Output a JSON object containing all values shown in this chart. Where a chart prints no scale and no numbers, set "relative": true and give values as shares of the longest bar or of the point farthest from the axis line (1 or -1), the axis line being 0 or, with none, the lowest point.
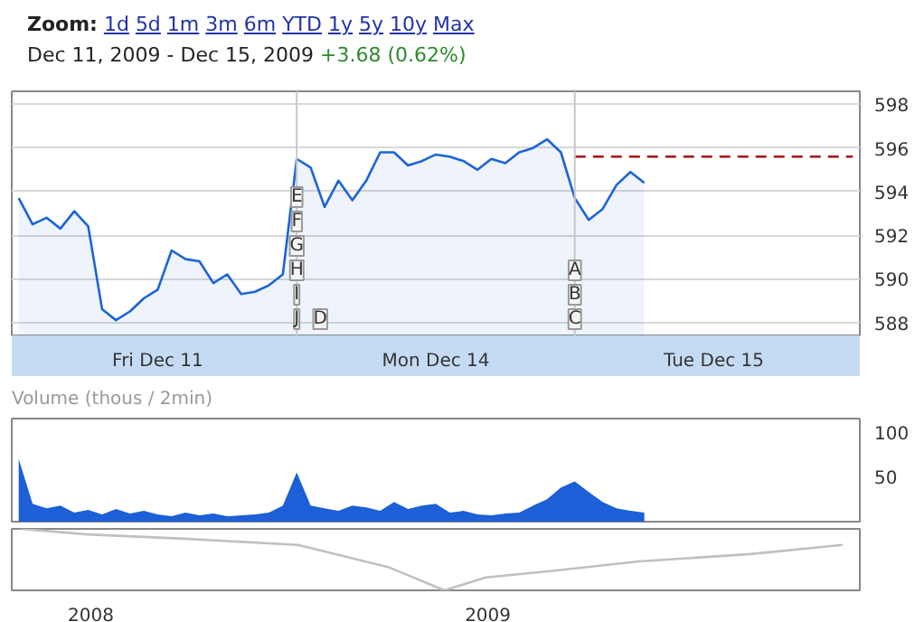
{
  "chart_data": [
    {
      "type": "area",
      "annotations": [
        "Zoom: 1d 5d 1m 3m 6m YTD 1y 5y 10y Max",
        "Dec 11, 2009",
        "-",
        "Dec 15, 2009",
        "+3.68 (0.62%)",
        "E",
        "F",
        "G",
        "H",
        "I",
        "J",
        "D",
        "A",
        "B",
        "C"
      ],
      "categories": [
        null,
        null,
        null,
        null,
        null,
        null,
        null,
        null,
        null,
        null,
        "Fri Dec 11",
        null,
        null,
        null,
        null,
        null,
        null,
        null,
        null,
        null,
        null,
        null,
        null,
        null,
        null,
        null,
        null,
        null,
        null,
        null,
        "Mon Dec 14",
        null,
        null,
        null,
        null,
        null,
        null,
        null,
        null,
        null,
        null,
        null,
        null,
        null,
        null,
        null,
        null,
        null,
        null,
        null,
        "Tue Dec 15",
        null,
        null,
        null,
        null,
        null,
        null,
        null,
        null,
        null,
        null
      ],
      "ylim": [
        587.4,
        598.6
      ],
      "yticks": [
        588,
        590,
        592,
        594,
        596,
        598
      ],
      "grid": "y",
      "series": [
        {
          "color": "#1c64d8",
          "values": [
            593.7,
            592.5,
            592.8,
            592.3,
            593.1,
            592.4,
            588.6,
            588.1,
            588.5,
            589.1,
            589.5,
            591.3,
            590.9,
            590.8,
            589.8,
            590.2,
            589.3,
            589.4,
            589.7,
            590.2,
            595.5,
            595.1,
            593.3,
            594.5,
            593.6,
            594.5,
            595.8,
            595.8,
            595.2,
            595.4,
            595.7,
            595.6,
            595.4,
            595.0,
            595.5,
            595.3,
            595.8,
            596.0,
            596.4,
            595.8,
            593.7,
            592.7,
            593.2,
            594.3,
            594.9,
            594.4,
            null,
            null,
            null,
            null,
            null,
            null,
            null,
            null,
            null,
            null,
            null,
            null,
            null,
            null,
            null
          ]
        },
        {
          "type": "line",
          "color": "#aa1111",
          "line_style": "dashed",
          "values": [
            null,
            null,
            null,
            null,
            null,
            null,
            null,
            null,
            null,
            null,
            null,
            null,
            null,
            null,
            null,
            null,
            null,
            null,
            null,
            null,
            null,
            null,
            null,
            null,
            null,
            null,
            null,
            null,
            null,
            null,
            null,
            null,
            null,
            null,
            null,
            null,
            null,
            null,
            null,
            null,
            595.6,
            595.6,
            595.6,
            595.6,
            595.6,
            595.6,
            595.6,
            595.6,
            595.6,
            595.6,
            595.6,
            595.6,
            595.6,
            595.6,
            595.6,
            595.6,
            595.6,
            595.6,
            595.6,
            595.6,
            595.6
          ]
        }
      ]
    },
    {
      "type": "area",
      "title": "Volume (thous / 2min)",
      "ylim": [
        0,
        115
      ],
      "yticks": [
        50,
        100
      ],
      "tick_labels": "y",
      "categories": [
        null,
        null,
        null,
        null,
        null,
        null,
        null,
        null,
        null,
        null,
        null,
        null,
        null,
        null,
        null,
        null,
        null,
        null,
        null,
        null,
        null,
        null,
        null,
        null,
        null,
        null,
        null,
        null,
        null,
        null,
        null,
        null,
        null,
        null,
        null,
        null,
        null,
        null,
        null,
        null,
        null,
        null,
        null,
        null,
        null,
        null,
        null,
        null,
        null,
        null,
        null,
        null,
        null,
        null,
        null,
        null,
        null,
        null,
        null,
        null,
        null
      ],
      "series": [
        {
          "color": "#1c5fd6",
          "values": [
            70,
            20,
            15,
            18,
            10,
            13,
            8,
            14,
            9,
            12,
            8,
            6,
            10,
            7,
            9,
            6,
            7,
            8,
            10,
            18,
            55,
            18,
            15,
            12,
            18,
            16,
            12,
            22,
            14,
            18,
            20,
            10,
            12,
            8,
            7,
            9,
            10,
            18,
            25,
            38,
            45,
            33,
            22,
            15,
            12,
            10,
            null,
            null,
            null,
            null,
            null,
            null,
            null,
            null,
            null,
            null,
            null,
            null,
            null,
            null,
            null
          ]
        }
      ]
    },
    {
      "type": "line",
      "relative": true,
      "tick_labels": "x",
      "xlim": [
        "2007-10-20",
        "2009-12-10"
      ],
      "xticks": [
        {
          "value": "2008-01-01",
          "label": "2008"
        },
        {
          "value": "2009-01-01",
          "label": "2009"
        }
      ],
      "series": [
        {
          "color": "#c0c0c0",
          "x": [
            "2007-10-28",
            "2007-12-29",
            "2008-03-27",
            "2008-07-10",
            "2008-10-01",
            "2008-11-22",
            "2008-12-30",
            "2009-03-03",
            "2009-05-20",
            "2009-08-31",
            "2009-11-24"
          ],
          "values": [
            1.0,
            0.91,
            0.84,
            0.74,
            0.38,
            0.0,
            0.21,
            0.32,
            0.47,
            0.59,
            0.74
          ]
        }
      ]
    }
  ]
}
